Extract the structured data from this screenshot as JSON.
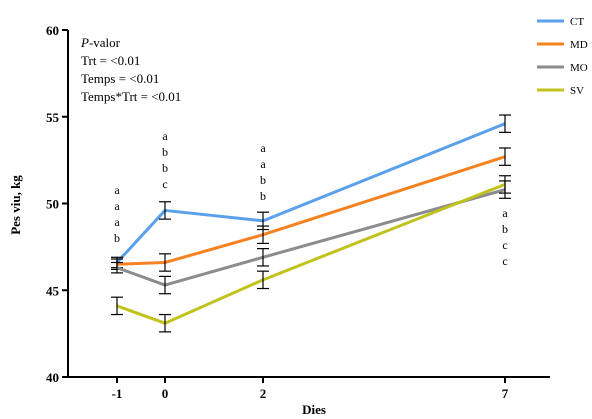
{
  "chart_data": {
    "type": "line",
    "xlabel": "Dies",
    "ylabel": "Pes viu, kg",
    "x": [
      -1,
      0,
      2,
      7
    ],
    "x_tick_labels": [
      "-1",
      "0",
      "2",
      "7"
    ],
    "ylim": [
      40,
      60
    ],
    "y_ticks": [
      40,
      45,
      50,
      55,
      60
    ],
    "grid": false,
    "legend_position": "top-right",
    "series": [
      {
        "name": "CT",
        "color": "#5aa0ea",
        "values": [
          46.6,
          49.6,
          49.0,
          54.6
        ],
        "errors": [
          0.3,
          0.5,
          0.5,
          0.5
        ]
      },
      {
        "name": "MD",
        "color": "#f5821f",
        "values": [
          46.5,
          46.6,
          48.2,
          52.7
        ],
        "errors": [
          0.3,
          0.5,
          0.5,
          0.5
        ]
      },
      {
        "name": "MO",
        "color": "#8c8c8c",
        "values": [
          46.3,
          45.3,
          46.9,
          50.8
        ],
        "errors": [
          0.3,
          0.5,
          0.5,
          0.5
        ]
      },
      {
        "name": "SV",
        "color": "#c2c21c",
        "values": [
          44.1,
          43.1,
          45.6,
          51.1
        ],
        "errors": [
          0.5,
          0.5,
          0.5,
          0.5
        ]
      }
    ],
    "annotation_prefix": "P",
    "annotation_lines": [
      "-valor",
      "Trt = <0.01",
      "Temps = <0.01",
      "Temps*Trt = <0.01"
    ],
    "significance_letters": [
      {
        "x": -1,
        "letters": [
          "a",
          "a",
          "a",
          "b"
        ]
      },
      {
        "x": 0,
        "letters": [
          "a",
          "b",
          "b",
          "c"
        ]
      },
      {
        "x": 2,
        "letters": [
          "a",
          "a",
          "b",
          "b"
        ]
      },
      {
        "x": 7,
        "letters": [
          "a",
          "b",
          "c",
          "c"
        ]
      }
    ]
  }
}
